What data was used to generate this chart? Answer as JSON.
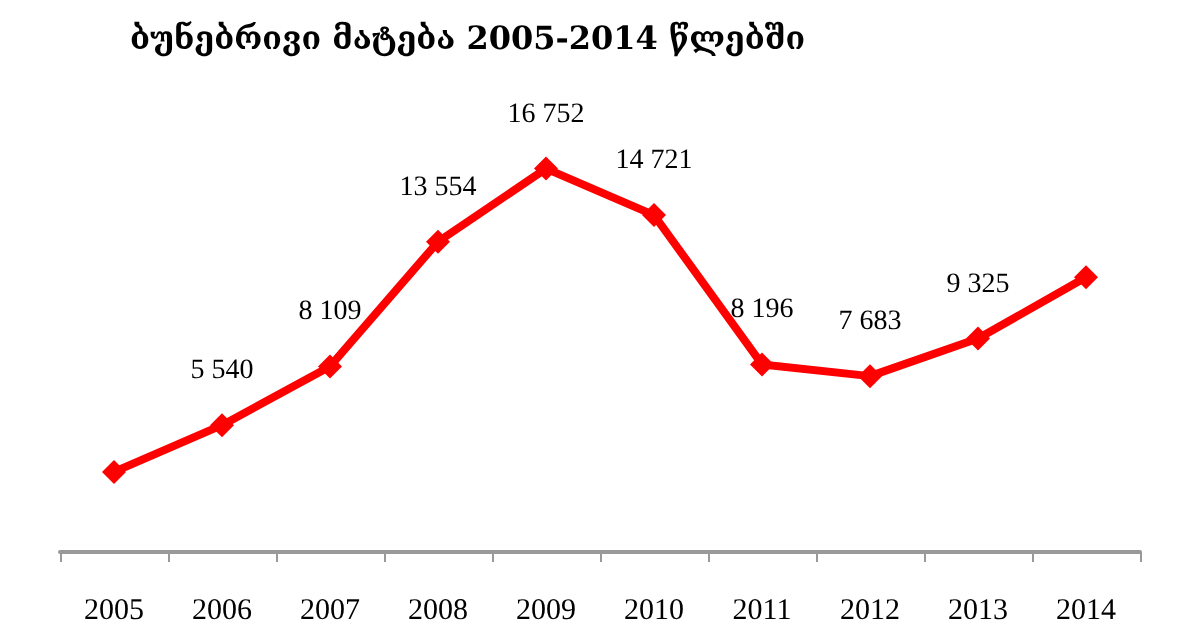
{
  "chart_data": {
    "type": "line",
    "title": "ბუნებრივი მატება 2005-2014 წლებში",
    "categories": [
      "2005",
      "2006",
      "2007",
      "2008",
      "2009",
      "2010",
      "2011",
      "2012",
      "2013",
      "2014"
    ],
    "values": [
      3500,
      5540,
      8109,
      13554,
      16752,
      14721,
      8196,
      7683,
      9325,
      12000
    ],
    "value_labels": [
      null,
      "5 540",
      "8 109",
      "13 554",
      "16 752",
      "14 721",
      "8 196",
      "7 683",
      "9 325",
      null
    ],
    "color": "#ff0000",
    "marker": "diamond",
    "line_style": "solid"
  }
}
